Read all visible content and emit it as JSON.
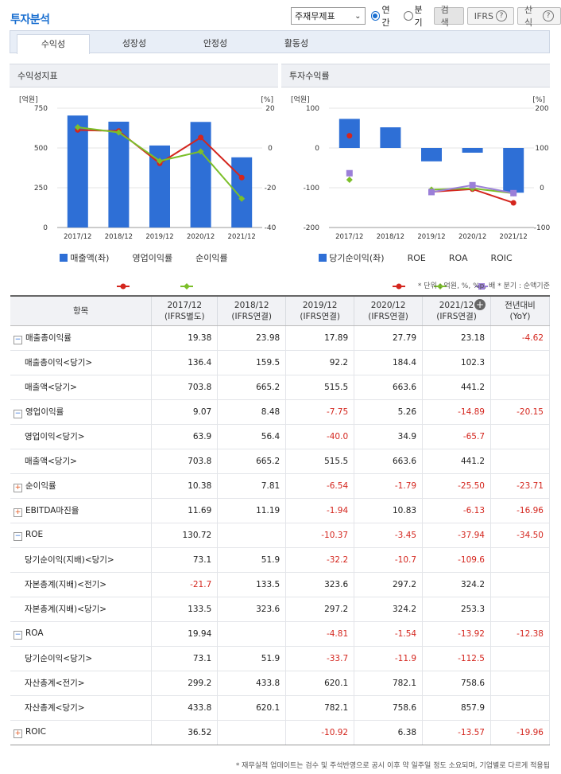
{
  "title": "투자분석",
  "controls": {
    "select_value": "주재무제표",
    "radio_annual": "연간",
    "radio_quarter": "분기",
    "search": "검색",
    "ifrs": "IFRS",
    "formula": "산식",
    "help_glyph": "?"
  },
  "tabs": [
    "수익성",
    "성장성",
    "안정성",
    "활동성"
  ],
  "panel_left_title": "수익성지표",
  "panel_right_title": "투자수익률",
  "unit_note": "* 단위 : 억원, %, %p, 배   * 분기 : 순액기준",
  "footer_note": "* 재무실적 업데이트는 검수 및 주석반영으로 공시 이후 약 일주일 정도 소요되며, 기업별로 다르게 적용됩",
  "chart_data": [
    {
      "type": "bar",
      "title": "수익성지표",
      "categories": [
        "2017/12",
        "2018/12",
        "2019/12",
        "2020/12",
        "2021/12"
      ],
      "ylabel_left": "[억원]",
      "ylabel_right": "[%]",
      "ylim_left": [
        0,
        750
      ],
      "ylim_right": [
        -40,
        20
      ],
      "yticks_left": [
        "750",
        "500",
        "250",
        "0"
      ],
      "yticks_right": [
        "20",
        "0",
        "-20",
        "-40"
      ],
      "series": [
        {
          "name": "매출액(좌)",
          "kind": "bar",
          "axis": "left",
          "color": "#2e6fd6",
          "values": [
            703.8,
            665.2,
            515.5,
            663.6,
            441.2
          ]
        },
        {
          "name": "영업이익률",
          "kind": "line",
          "axis": "right",
          "color": "#d4261e",
          "values": [
            9.07,
            8.48,
            -7.75,
            5.26,
            -14.89
          ]
        },
        {
          "name": "순이익률",
          "kind": "line",
          "axis": "right",
          "color": "#7cbf2a",
          "values": [
            10.38,
            7.81,
            -6.54,
            -1.79,
            -25.5
          ]
        }
      ]
    },
    {
      "type": "bar",
      "title": "투자수익률",
      "categories": [
        "2017/12",
        "2018/12",
        "2019/12",
        "2020/12",
        "2021/12"
      ],
      "ylabel_left": "[억원]",
      "ylabel_right": "[%]",
      "ylim_left": [
        -200,
        100
      ],
      "ylim_right": [
        -100,
        200
      ],
      "yticks_left": [
        "100",
        "0",
        "-100",
        "-200"
      ],
      "yticks_right": [
        "200",
        "100",
        "0",
        "-100"
      ],
      "series": [
        {
          "name": "당기순이익(좌)",
          "kind": "bar",
          "axis": "left",
          "color": "#2e6fd6",
          "values": [
            73.1,
            51.9,
            -33.7,
            -11.9,
            -112.5
          ]
        },
        {
          "name": "ROE",
          "kind": "line",
          "axis": "right",
          "color": "#d4261e",
          "values": [
            130.72,
            null,
            -10.37,
            -3.45,
            -37.94
          ]
        },
        {
          "name": "ROA",
          "kind": "line",
          "axis": "right",
          "color": "#7cbf2a",
          "values": [
            19.94,
            null,
            -4.81,
            -1.54,
            -13.92
          ]
        },
        {
          "name": "ROIC",
          "kind": "line",
          "axis": "right",
          "color": "#9b7fd8",
          "values": [
            36.52,
            null,
            -10.92,
            6.38,
            -13.57
          ]
        }
      ]
    }
  ],
  "table": {
    "headers": [
      {
        "l1": "항목",
        "l2": ""
      },
      {
        "l1": "2017/12",
        "l2": "(IFRS별도)"
      },
      {
        "l1": "2018/12",
        "l2": "(IFRS연결)"
      },
      {
        "l1": "2019/12",
        "l2": "(IFRS연결)"
      },
      {
        "l1": "2020/12",
        "l2": "(IFRS연결)"
      },
      {
        "l1": "2021/12",
        "l2": "(IFRS연결)"
      },
      {
        "l1": "전년대비",
        "l2": "(YoY)"
      }
    ],
    "rows": [
      {
        "label": "매출총이익률",
        "type": "minus",
        "cells": [
          "19.38",
          "23.98",
          "17.89",
          "27.79",
          "23.18",
          "-4.62"
        ]
      },
      {
        "label": "매출총이익<당기>",
        "type": "sub",
        "cells": [
          "136.4",
          "159.5",
          "92.2",
          "184.4",
          "102.3",
          ""
        ]
      },
      {
        "label": "매출액<당기>",
        "type": "sub",
        "cells": [
          "703.8",
          "665.2",
          "515.5",
          "663.6",
          "441.2",
          ""
        ]
      },
      {
        "label": "영업이익률",
        "type": "minus",
        "cells": [
          "9.07",
          "8.48",
          "-7.75",
          "5.26",
          "-14.89",
          "-20.15"
        ]
      },
      {
        "label": "영업이익<당기>",
        "type": "sub",
        "cells": [
          "63.9",
          "56.4",
          "-40.0",
          "34.9",
          "-65.7",
          ""
        ]
      },
      {
        "label": "매출액<당기>",
        "type": "sub",
        "cells": [
          "703.8",
          "665.2",
          "515.5",
          "663.6",
          "441.2",
          ""
        ]
      },
      {
        "label": "순이익률",
        "type": "plus",
        "cells": [
          "10.38",
          "7.81",
          "-6.54",
          "-1.79",
          "-25.50",
          "-23.71"
        ]
      },
      {
        "label": "EBITDA마진율",
        "type": "plus",
        "cells": [
          "11.69",
          "11.19",
          "-1.94",
          "10.83",
          "-6.13",
          "-16.96"
        ]
      },
      {
        "label": "ROE",
        "type": "minus",
        "cells": [
          "130.72",
          "",
          "-10.37",
          "-3.45",
          "-37.94",
          "-34.50"
        ]
      },
      {
        "label": "당기순이익(지배)<당기>",
        "type": "sub",
        "cells": [
          "73.1",
          "51.9",
          "-32.2",
          "-10.7",
          "-109.6",
          ""
        ]
      },
      {
        "label": "자본총계(지배)<전기>",
        "type": "sub",
        "cells": [
          "-21.7",
          "133.5",
          "323.6",
          "297.2",
          "324.2",
          ""
        ]
      },
      {
        "label": "자본총계(지배)<당기>",
        "type": "sub",
        "cells": [
          "133.5",
          "323.6",
          "297.2",
          "324.2",
          "253.3",
          ""
        ]
      },
      {
        "label": "ROA",
        "type": "minus",
        "cells": [
          "19.94",
          "",
          "-4.81",
          "-1.54",
          "-13.92",
          "-12.38"
        ]
      },
      {
        "label": "당기순이익<당기>",
        "type": "sub",
        "cells": [
          "73.1",
          "51.9",
          "-33.7",
          "-11.9",
          "-112.5",
          ""
        ]
      },
      {
        "label": "자산총계<전기>",
        "type": "sub",
        "cells": [
          "299.2",
          "433.8",
          "620.1",
          "782.1",
          "758.6",
          ""
        ]
      },
      {
        "label": "자산총계<당기>",
        "type": "sub",
        "cells": [
          "433.8",
          "620.1",
          "782.1",
          "758.6",
          "857.9",
          ""
        ]
      },
      {
        "label": "ROIC",
        "type": "plus",
        "cells": [
          "36.52",
          "",
          "-10.92",
          "6.38",
          "-13.57",
          "-19.96"
        ]
      }
    ]
  }
}
